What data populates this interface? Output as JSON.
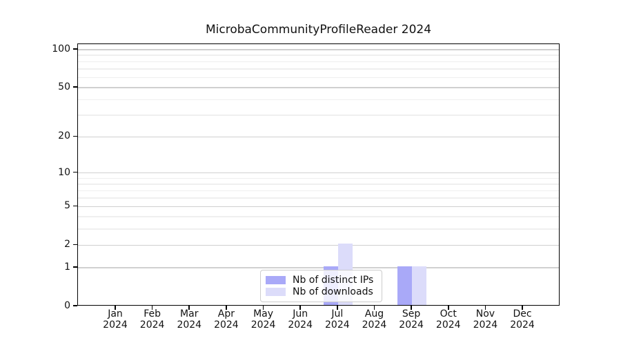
{
  "chart_data": {
    "type": "bar",
    "title": "MicrobaCommunityProfileReader 2024",
    "categories": [
      "Jan",
      "Feb",
      "Mar",
      "Apr",
      "May",
      "Jun",
      "Jul",
      "Aug",
      "Sep",
      "Oct",
      "Nov",
      "Dec"
    ],
    "category_year": "2024",
    "series": [
      {
        "name": "Nb of distinct IPs",
        "color": "#a9a9f8",
        "values": [
          0,
          0,
          0,
          0,
          0,
          0,
          1,
          0,
          1,
          0,
          0,
          0
        ]
      },
      {
        "name": "Nb of downloads",
        "color": "#dcdcfa",
        "values": [
          0,
          0,
          0,
          0,
          0,
          0,
          2,
          0,
          1,
          0,
          0,
          0
        ]
      }
    ],
    "y_axis": {
      "scale": "log1p",
      "ticks": [
        0,
        1,
        2,
        5,
        10,
        20,
        50,
        100
      ],
      "minor_ticks": [
        3,
        4,
        6,
        7,
        8,
        9,
        30,
        40,
        60,
        70,
        80,
        90
      ],
      "ylim": [
        0,
        110
      ]
    },
    "legend": {
      "position": "lower center",
      "entries": [
        "Nb of distinct IPs",
        "Nb of downloads"
      ]
    },
    "grid": true
  }
}
